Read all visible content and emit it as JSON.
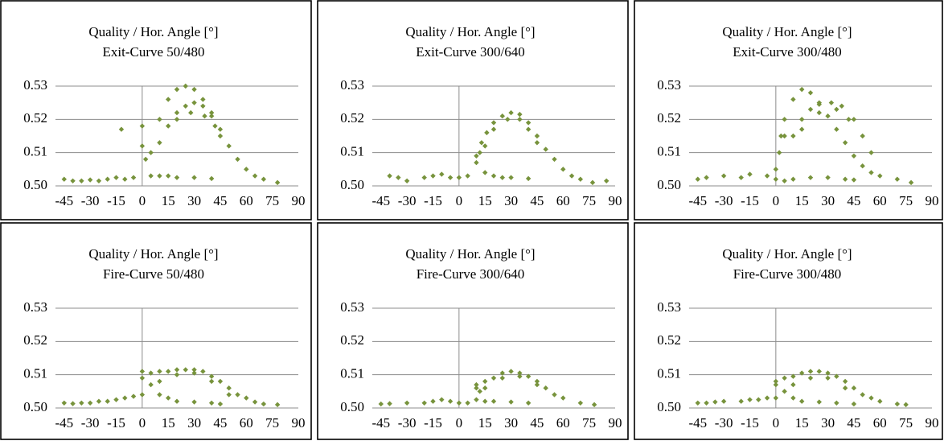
{
  "chart_data": [
    {
      "type": "scatter",
      "title": "Quality / Hor. Angle [°]",
      "subtitle": "Exit-Curve 50/480",
      "color": "#77933c",
      "grid": true,
      "xlim": [
        -50,
        90
      ],
      "ylim": [
        0.5,
        0.53
      ],
      "xticks": [
        -45,
        -30,
        -15,
        0,
        15,
        30,
        45,
        60,
        75,
        90
      ],
      "yticks": [
        {
          "value": 0.5,
          "label": "0.50"
        },
        0.51,
        0.52,
        0.53
      ],
      "x": [
        -45,
        -40,
        -35,
        -30,
        -25,
        -20,
        -15,
        -10,
        -5,
        -12,
        0,
        0,
        2,
        5,
        10,
        15,
        20,
        30,
        40,
        5,
        10,
        15,
        20,
        25,
        30,
        35,
        40,
        45,
        50,
        55,
        60,
        65,
        70,
        78,
        10,
        15,
        20,
        25,
        30,
        35,
        40,
        45,
        20,
        28,
        36,
        42
      ],
      "y": [
        0.502,
        0.5015,
        0.5015,
        0.5018,
        0.5015,
        0.502,
        0.5025,
        0.502,
        0.5025,
        0.517,
        0.518,
        0.512,
        0.508,
        0.503,
        0.503,
        0.503,
        0.5025,
        0.5025,
        0.5022,
        0.51,
        0.52,
        0.526,
        0.529,
        0.53,
        0.529,
        0.526,
        0.522,
        0.517,
        0.512,
        0.508,
        0.505,
        0.503,
        0.502,
        0.501,
        0.513,
        0.518,
        0.522,
        0.524,
        0.525,
        0.524,
        0.521,
        0.515,
        0.52,
        0.522,
        0.521,
        0.518
      ]
    },
    {
      "type": "scatter",
      "title": "Quality / Hor. Angle [°]",
      "subtitle": "Exit-Curve 300/640",
      "color": "#77933c",
      "grid": true,
      "xlim": [
        -50,
        90
      ],
      "ylim": [
        0.5,
        0.53
      ],
      "xticks": [
        -45,
        -30,
        -15,
        0,
        15,
        30,
        45,
        60,
        75,
        90
      ],
      "yticks": [
        {
          "value": 0.5,
          "label": "0.50"
        },
        0.51,
        0.52,
        0.53
      ],
      "x": [
        -40,
        -35,
        -30,
        -20,
        -15,
        -10,
        -5,
        0,
        5,
        10,
        12,
        15,
        20,
        25,
        30,
        40,
        85,
        10,
        13,
        16,
        20,
        25,
        30,
        35,
        40,
        45,
        50,
        55,
        60,
        65,
        70,
        77,
        15,
        20,
        28,
        35,
        40,
        45
      ],
      "y": [
        0.503,
        0.5025,
        0.5015,
        0.5025,
        0.503,
        0.5035,
        0.5025,
        0.5025,
        0.503,
        0.507,
        0.51,
        0.504,
        0.503,
        0.5025,
        0.5025,
        0.5022,
        0.5015,
        0.509,
        0.513,
        0.516,
        0.519,
        0.521,
        0.522,
        0.5215,
        0.519,
        0.515,
        0.511,
        0.508,
        0.505,
        0.503,
        0.502,
        0.501,
        0.512,
        0.517,
        0.52,
        0.52,
        0.517,
        0.513
      ]
    },
    {
      "type": "scatter",
      "title": "Quality / Hor. Angle [°]",
      "subtitle": "Exit-Curve 300/480",
      "color": "#77933c",
      "grid": true,
      "xlim": [
        -50,
        90
      ],
      "ylim": [
        0.5,
        0.53
      ],
      "xticks": [
        -45,
        -30,
        -15,
        0,
        15,
        30,
        45,
        60,
        75,
        90
      ],
      "yticks": [
        {
          "value": 0.5,
          "label": "0.50"
        },
        0.51,
        0.52,
        0.53
      ],
      "x": [
        -45,
        -40,
        -30,
        -20,
        -15,
        -5,
        0,
        5,
        10,
        20,
        30,
        40,
        45,
        0,
        2,
        3,
        5,
        5,
        10,
        15,
        20,
        25,
        30,
        35,
        40,
        45,
        50,
        55,
        60,
        70,
        78,
        10,
        15,
        20,
        25,
        32,
        38,
        45,
        50,
        55,
        15,
        25,
        35,
        42
      ],
      "y": [
        0.502,
        0.5025,
        0.503,
        0.5025,
        0.5035,
        0.503,
        0.502,
        0.5015,
        0.502,
        0.5025,
        0.5025,
        0.502,
        0.5018,
        0.505,
        0.51,
        0.515,
        0.52,
        0.515,
        0.526,
        0.529,
        0.528,
        0.525,
        0.521,
        0.517,
        0.513,
        0.509,
        0.506,
        0.504,
        0.503,
        0.502,
        0.501,
        0.515,
        0.52,
        0.523,
        0.5245,
        0.525,
        0.524,
        0.52,
        0.515,
        0.51,
        0.517,
        0.522,
        0.523,
        0.52
      ]
    },
    {
      "type": "scatter",
      "title": "Quality / Hor. Angle [°]",
      "subtitle": "Fire-Curve 50/480",
      "color": "#77933c",
      "grid": true,
      "xlim": [
        -50,
        90
      ],
      "ylim": [
        0.5,
        0.53
      ],
      "xticks": [
        -45,
        -30,
        -15,
        0,
        15,
        30,
        45,
        60,
        75,
        90
      ],
      "yticks": [
        {
          "value": 0.5,
          "label": "0.50"
        },
        0.51,
        0.52,
        0.53
      ],
      "x": [
        -45,
        -40,
        -35,
        -30,
        -25,
        -20,
        -15,
        -10,
        -5,
        0,
        0,
        5,
        10,
        15,
        20,
        30,
        40,
        45,
        0,
        5,
        10,
        15,
        20,
        25,
        30,
        35,
        40,
        45,
        50,
        55,
        60,
        65,
        70,
        78,
        10,
        20,
        30,
        40,
        50
      ],
      "y": [
        0.5015,
        0.5013,
        0.5015,
        0.5015,
        0.502,
        0.502,
        0.5025,
        0.503,
        0.5035,
        0.504,
        0.511,
        0.507,
        0.504,
        0.503,
        0.502,
        0.5018,
        0.5015,
        0.5012,
        0.509,
        0.5105,
        0.511,
        0.511,
        0.5115,
        0.5115,
        0.5115,
        0.511,
        0.5095,
        0.508,
        0.506,
        0.504,
        0.503,
        0.5018,
        0.5012,
        0.501,
        0.508,
        0.51,
        0.5105,
        0.508,
        0.504
      ]
    },
    {
      "type": "scatter",
      "title": "Quality / Hor. Angle [°]",
      "subtitle": "Fire-Curve 300/640",
      "color": "#77933c",
      "grid": true,
      "xlim": [
        -50,
        90
      ],
      "ylim": [
        0.5,
        0.53
      ],
      "xticks": [
        -45,
        -30,
        -15,
        0,
        15,
        30,
        45,
        60,
        75,
        90
      ],
      "yticks": [
        {
          "value": 0.5,
          "label": "0.50"
        },
        0.51,
        0.52,
        0.53
      ],
      "x": [
        -45,
        -40,
        -30,
        -20,
        -15,
        -10,
        -5,
        0,
        5,
        10,
        10,
        12,
        15,
        20,
        30,
        40,
        10,
        15,
        20,
        25,
        30,
        35,
        40,
        45,
        50,
        55,
        60,
        70,
        78,
        15,
        25,
        35,
        45
      ],
      "y": [
        0.5012,
        0.5013,
        0.5015,
        0.5015,
        0.502,
        0.5025,
        0.502,
        0.5015,
        0.5015,
        0.5025,
        0.506,
        0.505,
        0.502,
        0.502,
        0.5018,
        0.5015,
        0.507,
        0.508,
        0.509,
        0.5105,
        0.511,
        0.5105,
        0.5095,
        0.508,
        0.506,
        0.504,
        0.503,
        0.5015,
        0.501,
        0.506,
        0.509,
        0.5095,
        0.507
      ]
    },
    {
      "type": "scatter",
      "title": "Quality / Hor. Angle [°]",
      "subtitle": "Fire-Curve 300/480",
      "color": "#77933c",
      "grid": true,
      "xlim": [
        -50,
        90
      ],
      "ylim": [
        0.5,
        0.53
      ],
      "xticks": [
        -45,
        -30,
        -15,
        0,
        15,
        30,
        45,
        60,
        75,
        90
      ],
      "yticks": [
        {
          "value": 0.5,
          "label": "0.50"
        },
        0.51,
        0.52,
        0.53
      ],
      "x": [
        -45,
        -40,
        -35,
        -30,
        -20,
        -15,
        -10,
        -5,
        0,
        0,
        5,
        10,
        15,
        25,
        35,
        45,
        0,
        5,
        10,
        15,
        20,
        25,
        30,
        35,
        40,
        45,
        50,
        55,
        60,
        70,
        75,
        10,
        20,
        30,
        40
      ],
      "y": [
        0.5015,
        0.5015,
        0.5018,
        0.502,
        0.502,
        0.5025,
        0.5025,
        0.503,
        0.503,
        0.507,
        0.505,
        0.503,
        0.502,
        0.5018,
        0.5015,
        0.5012,
        0.508,
        0.509,
        0.5095,
        0.5105,
        0.511,
        0.511,
        0.5105,
        0.5095,
        0.508,
        0.506,
        0.504,
        0.503,
        0.502,
        0.5012,
        0.501,
        0.507,
        0.509,
        0.509,
        0.506
      ]
    }
  ]
}
